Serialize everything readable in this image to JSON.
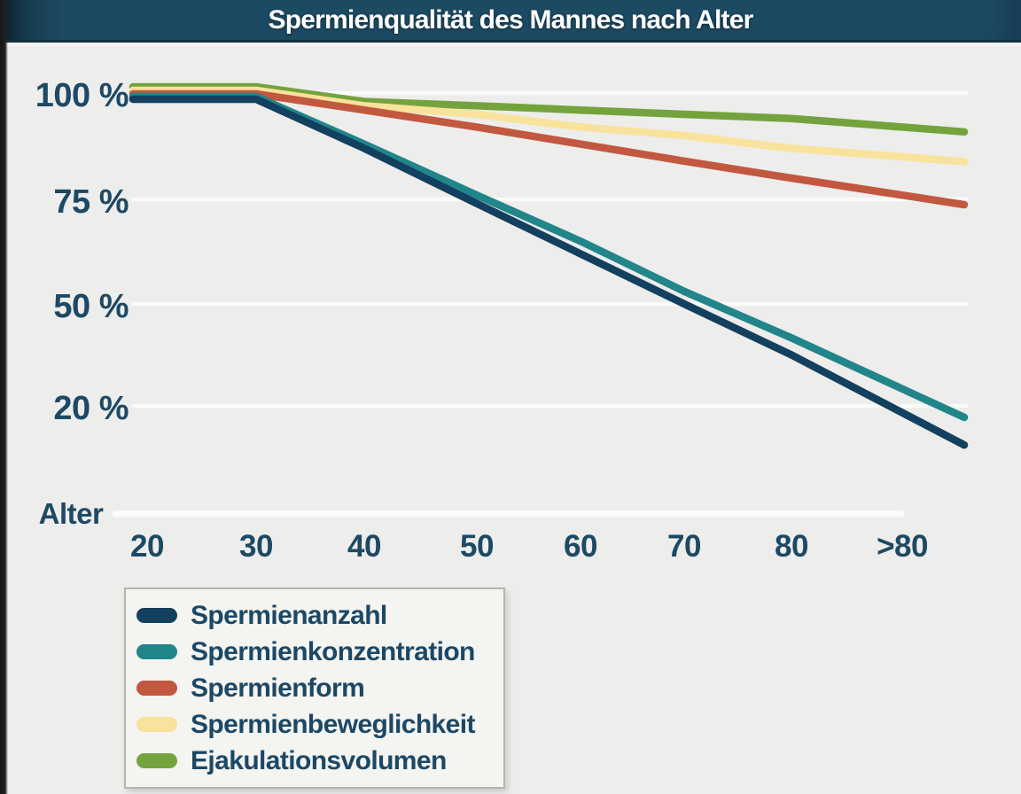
{
  "header": {
    "title": "Spermienqualität des Mannes nach Alter"
  },
  "colors": {
    "header_bg": "#1c4a62",
    "page_bg": "#ededec",
    "axis_text": "#1d4964",
    "gridline": "#fbfbf9",
    "legend_bg": "#f4f4f1",
    "legend_border": "#b4b4b1"
  },
  "chart_data": {
    "type": "line",
    "title": "Spermienqualität des Mannes nach Alter",
    "xlabel": "Alter",
    "ylabel": "",
    "x_categories": [
      "20",
      "30",
      "40",
      "50",
      "60",
      "70",
      "80",
      ">80"
    ],
    "ytick_labels": [
      "100 %",
      "75 %",
      "50 %",
      "20 %"
    ],
    "ytick_values": [
      100,
      75,
      50,
      20
    ],
    "grid": true,
    "legend_position": "bottom-left",
    "series": [
      {
        "name": "Spermienanzahl",
        "color": "#12405e",
        "values": [
          100,
          100,
          87,
          74,
          62,
          50,
          35,
          18
        ]
      },
      {
        "name": "Spermienkonzentration",
        "color": "#21858a",
        "values": [
          100,
          100,
          88,
          76,
          65,
          53,
          40,
          25
        ]
      },
      {
        "name": "Spermienform",
        "color": "#c1583f",
        "values": [
          100,
          100,
          96,
          92,
          88,
          84,
          80,
          76
        ]
      },
      {
        "name": "Spermienbeweglichkeit",
        "color": "#f9e29b",
        "values": [
          100,
          100,
          97,
          95,
          92,
          90,
          87,
          85
        ]
      },
      {
        "name": "Ejakulationsvolumen",
        "color": "#74a33e",
        "values": [
          100,
          100,
          98,
          97,
          96,
          95,
          94,
          92
        ]
      }
    ]
  }
}
